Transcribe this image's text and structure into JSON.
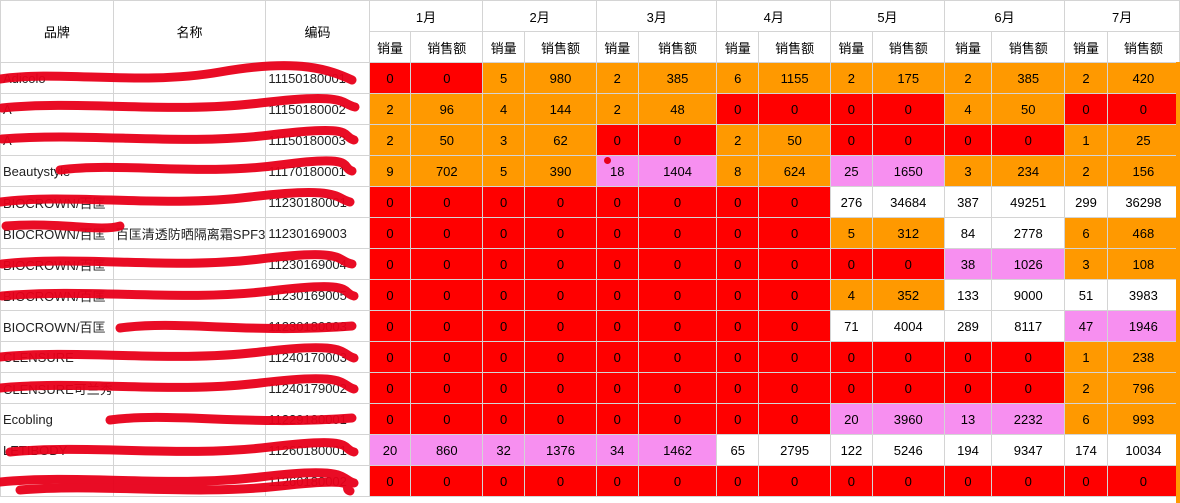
{
  "headers": {
    "brand": "品牌",
    "name": "名称",
    "code": "编码",
    "months": [
      "1月",
      "2月",
      "3月",
      "4月",
      "5月",
      "6月",
      "7月"
    ],
    "qty": "销量",
    "amount": "销售额"
  },
  "colors": {
    "red": "#ff0000",
    "orange": "#ff9900",
    "pink": "#f78ff0",
    "white": "#ffffff",
    "scribble": "#e8001a"
  },
  "rows": [
    {
      "brand": "Adicolo",
      "name": "",
      "code": "11150180001",
      "cells": [
        [
          "0",
          "0",
          "red"
        ],
        [
          "5",
          "980",
          "orange"
        ],
        [
          "2",
          "385",
          "orange"
        ],
        [
          "6",
          "1155",
          "orange"
        ],
        [
          "2",
          "175",
          "orange"
        ],
        [
          "2",
          "385",
          "orange"
        ],
        [
          "2",
          "420",
          "orange"
        ]
      ]
    },
    {
      "brand": "A",
      "name": "",
      "code": "11150180002",
      "cells": [
        [
          "2",
          "96",
          "orange"
        ],
        [
          "4",
          "144",
          "orange"
        ],
        [
          "2",
          "48",
          "orange"
        ],
        [
          "0",
          "0",
          "red"
        ],
        [
          "0",
          "0",
          "red"
        ],
        [
          "4",
          "50",
          "orange"
        ],
        [
          "0",
          "0",
          "red"
        ]
      ]
    },
    {
      "brand": "A",
      "name": "",
      "code": "11150180003",
      "cells": [
        [
          "2",
          "50",
          "orange"
        ],
        [
          "3",
          "62",
          "orange"
        ],
        [
          "0",
          "0",
          "red"
        ],
        [
          "2",
          "50",
          "orange"
        ],
        [
          "0",
          "0",
          "red"
        ],
        [
          "0",
          "0",
          "red"
        ],
        [
          "1",
          "25",
          "orange"
        ]
      ]
    },
    {
      "brand": "Beautystyle",
      "name": "",
      "code": "11170180001",
      "cells": [
        [
          "9",
          "702",
          "orange"
        ],
        [
          "5",
          "390",
          "orange"
        ],
        [
          "18",
          "1404",
          "pink"
        ],
        [
          "8",
          "624",
          "orange"
        ],
        [
          "25",
          "1650",
          "pink"
        ],
        [
          "3",
          "234",
          "orange"
        ],
        [
          "2",
          "156",
          "orange"
        ]
      ]
    },
    {
      "brand": "BIOCROWN/百匡",
      "name": "",
      "code": "11230180001",
      "cells": [
        [
          "0",
          "0",
          "red"
        ],
        [
          "0",
          "0",
          "red"
        ],
        [
          "0",
          "0",
          "red"
        ],
        [
          "0",
          "0",
          "red"
        ],
        [
          "276",
          "34684",
          "white"
        ],
        [
          "387",
          "49251",
          "white"
        ],
        [
          "299",
          "36298",
          "white"
        ]
      ]
    },
    {
      "brand": "BIOCROWN/百匡",
      "name": "百匡清透防晒隔离霜SPF3",
      "code": "11230169003",
      "cells": [
        [
          "0",
          "0",
          "red"
        ],
        [
          "0",
          "0",
          "red"
        ],
        [
          "0",
          "0",
          "red"
        ],
        [
          "0",
          "0",
          "red"
        ],
        [
          "5",
          "312",
          "orange"
        ],
        [
          "84",
          "2778",
          "white"
        ],
        [
          "6",
          "468",
          "orange"
        ]
      ]
    },
    {
      "brand": "BIOCROWN/百匡",
      "name": "",
      "code": "11230169004",
      "cells": [
        [
          "0",
          "0",
          "red"
        ],
        [
          "0",
          "0",
          "red"
        ],
        [
          "0",
          "0",
          "red"
        ],
        [
          "0",
          "0",
          "red"
        ],
        [
          "0",
          "0",
          "red"
        ],
        [
          "38",
          "1026",
          "pink"
        ],
        [
          "3",
          "108",
          "orange"
        ]
      ]
    },
    {
      "brand": "BIOCROWN/百匡",
      "name": "",
      "code": "11230169005",
      "cells": [
        [
          "0",
          "0",
          "red"
        ],
        [
          "0",
          "0",
          "red"
        ],
        [
          "0",
          "0",
          "red"
        ],
        [
          "0",
          "0",
          "red"
        ],
        [
          "4",
          "352",
          "orange"
        ],
        [
          "133",
          "9000",
          "white"
        ],
        [
          "51",
          "3983",
          "white"
        ]
      ]
    },
    {
      "brand": "BIOCROWN/百匡",
      "name": "",
      "code": "11230180003",
      "cells": [
        [
          "0",
          "0",
          "red"
        ],
        [
          "0",
          "0",
          "red"
        ],
        [
          "0",
          "0",
          "red"
        ],
        [
          "0",
          "0",
          "red"
        ],
        [
          "71",
          "4004",
          "white"
        ],
        [
          "289",
          "8117",
          "white"
        ],
        [
          "47",
          "1946",
          "pink"
        ]
      ]
    },
    {
      "brand": "CLENSURE",
      "name": "",
      "code": "11240170003",
      "cells": [
        [
          "0",
          "0",
          "red"
        ],
        [
          "0",
          "0",
          "red"
        ],
        [
          "0",
          "0",
          "red"
        ],
        [
          "0",
          "0",
          "red"
        ],
        [
          "0",
          "0",
          "red"
        ],
        [
          "0",
          "0",
          "red"
        ],
        [
          "1",
          "238",
          "orange"
        ]
      ]
    },
    {
      "brand": "CLENSURE可兰秀",
      "name": "",
      "code": "11240179002",
      "cells": [
        [
          "0",
          "0",
          "red"
        ],
        [
          "0",
          "0",
          "red"
        ],
        [
          "0",
          "0",
          "red"
        ],
        [
          "0",
          "0",
          "red"
        ],
        [
          "0",
          "0",
          "red"
        ],
        [
          "0",
          "0",
          "red"
        ],
        [
          "2",
          "796",
          "orange"
        ]
      ]
    },
    {
      "brand": "Ecobling",
      "name": "",
      "code": "11229180001",
      "cells": [
        [
          "0",
          "0",
          "red"
        ],
        [
          "0",
          "0",
          "red"
        ],
        [
          "0",
          "0",
          "red"
        ],
        [
          "0",
          "0",
          "red"
        ],
        [
          "20",
          "3960",
          "pink"
        ],
        [
          "13",
          "2232",
          "pink"
        ],
        [
          "6",
          "993",
          "orange"
        ]
      ]
    },
    {
      "brand": "LETIBODY",
      "name": "",
      "code": "11260180001",
      "cells": [
        [
          "20",
          "860",
          "pink"
        ],
        [
          "32",
          "1376",
          "pink"
        ],
        [
          "34",
          "1462",
          "pink"
        ],
        [
          "65",
          "2795",
          "white"
        ],
        [
          "122",
          "5246",
          "white"
        ],
        [
          "194",
          "9347",
          "white"
        ],
        [
          "174",
          "10034",
          "white"
        ]
      ]
    },
    {
      "brand": "",
      "name": "",
      "code": "11260180002",
      "cells": [
        [
          "0",
          "0",
          "red"
        ],
        [
          "0",
          "0",
          "red"
        ],
        [
          "0",
          "0",
          "red"
        ],
        [
          "0",
          "0",
          "red"
        ],
        [
          "0",
          "0",
          "red"
        ],
        [
          "0",
          "0",
          "red"
        ],
        [
          "0",
          "0",
          "red"
        ]
      ]
    }
  ]
}
